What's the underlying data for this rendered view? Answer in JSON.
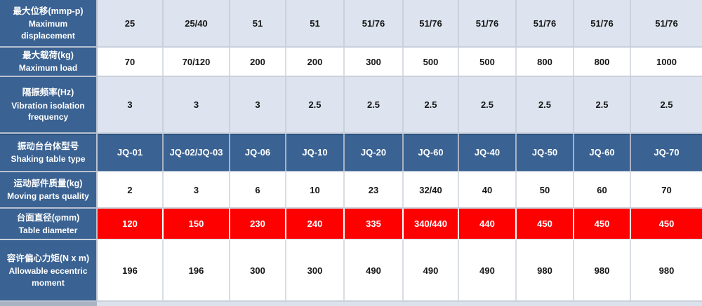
{
  "table": {
    "column_count": 10,
    "rows": [
      {
        "label_zh": "最大位移(mmp-p)",
        "label_en": "Maximum displacement",
        "style": "light",
        "values": [
          "25",
          "25/40",
          "51",
          "51",
          "51/76",
          "51/76",
          "51/76",
          "51/76",
          "51/76",
          "51/76"
        ]
      },
      {
        "label_zh": "最大载荷(kg)",
        "label_en": "Maximum load",
        "style": "white",
        "values": [
          "70",
          "70/120",
          "200",
          "200",
          "300",
          "500",
          "500",
          "800",
          "800",
          "1000"
        ]
      },
      {
        "label_zh": "隔振频率(Hz)",
        "label_en": "Vibration isolation frequency",
        "style": "light",
        "values": [
          "3",
          "3",
          "3",
          "2.5",
          "2.5",
          "2.5",
          "2.5",
          "2.5",
          "2.5",
          "2.5"
        ]
      },
      {
        "label_zh": "振动台台体型号",
        "label_en": "Shaking table type",
        "style": "dark",
        "values": [
          "JQ-01",
          "JQ-02/JQ-03",
          "JQ-06",
          "JQ-10",
          "JQ-20",
          "JQ-60",
          "JQ-40",
          "JQ-50",
          "JQ-60",
          "JQ-70"
        ]
      },
      {
        "label_zh": "运动部件质量(kg)",
        "label_en": "Moving parts quality",
        "style": "white",
        "values": [
          "2",
          "3",
          "6",
          "10",
          "23",
          "32/40",
          "40",
          "50",
          "60",
          "70"
        ]
      },
      {
        "label_zh": "台面直径(φmm)",
        "label_en": "Table diameter",
        "style": "red",
        "values": [
          "120",
          "150",
          "230",
          "240",
          "335",
          "340/440",
          "440",
          "450",
          "450",
          "450"
        ]
      },
      {
        "label_zh": "容许偏心力矩(N x m)",
        "label_en": "Allowable eccentric moment",
        "style": "white",
        "values": [
          "196",
          "196",
          "300",
          "300",
          "490",
          "490",
          "490",
          "980",
          "980",
          "980"
        ]
      }
    ]
  },
  "colors": {
    "header_blue": "#3A6292",
    "row_light": "#DDE4EF",
    "row_white": "#FFFFFF",
    "highlight_red": "#FE0000",
    "text_dark": "#161616",
    "text_light": "#FFFFFF"
  }
}
